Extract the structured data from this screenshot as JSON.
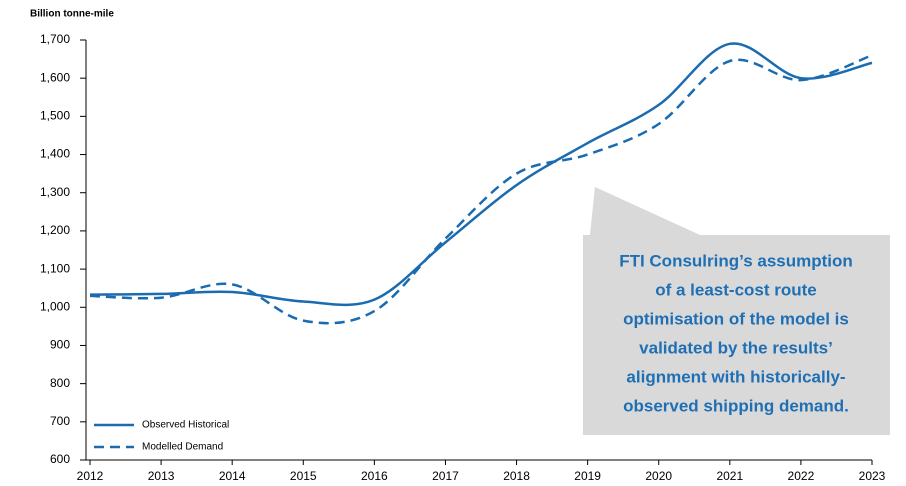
{
  "chart_data": {
    "type": "line",
    "y_label": "Billion tonne-mile",
    "x": [
      2012,
      2013,
      2014,
      2015,
      2016,
      2017,
      2018,
      2019,
      2020,
      2021,
      2022,
      2023
    ],
    "series": [
      {
        "name": "Observed Historical",
        "color": "#1a6bb0",
        "dash": false,
        "values": [
          1033,
          1035,
          1040,
          1015,
          1020,
          1170,
          1320,
          1430,
          1530,
          1690,
          1600,
          1640
        ]
      },
      {
        "name": "Modelled Demand",
        "color": "#1a6bb0",
        "dash": true,
        "values": [
          1030,
          1025,
          1060,
          965,
          990,
          1180,
          1350,
          1400,
          1480,
          1645,
          1595,
          1660
        ]
      }
    ],
    "xlim": [
      2012,
      2023
    ],
    "xticks": [
      2012,
      2013,
      2014,
      2015,
      2016,
      2017,
      2018,
      2019,
      2020,
      2021,
      2022,
      2023
    ],
    "ylim": [
      600,
      1700
    ],
    "yticks": [
      600,
      700,
      800,
      900,
      {
        "value": 1000,
        "label": "1,000"
      },
      {
        "value": 1100,
        "label": "1,100"
      },
      {
        "value": 1200,
        "label": "1,200"
      },
      {
        "value": 1300,
        "label": "1,300"
      },
      {
        "value": 1400,
        "label": "1,400"
      },
      {
        "value": 1500,
        "label": "1,500"
      },
      {
        "value": 1600,
        "label": "1,600"
      },
      {
        "value": 1700,
        "label": "1,700"
      }
    ],
    "legend": "lower left",
    "annotation": [
      "FTI Consulring’s assumption",
      "of a least-cost route",
      "optimisation of the model is",
      "validated by the results’",
      "alignment with historically-",
      "observed shipping demand."
    ]
  }
}
